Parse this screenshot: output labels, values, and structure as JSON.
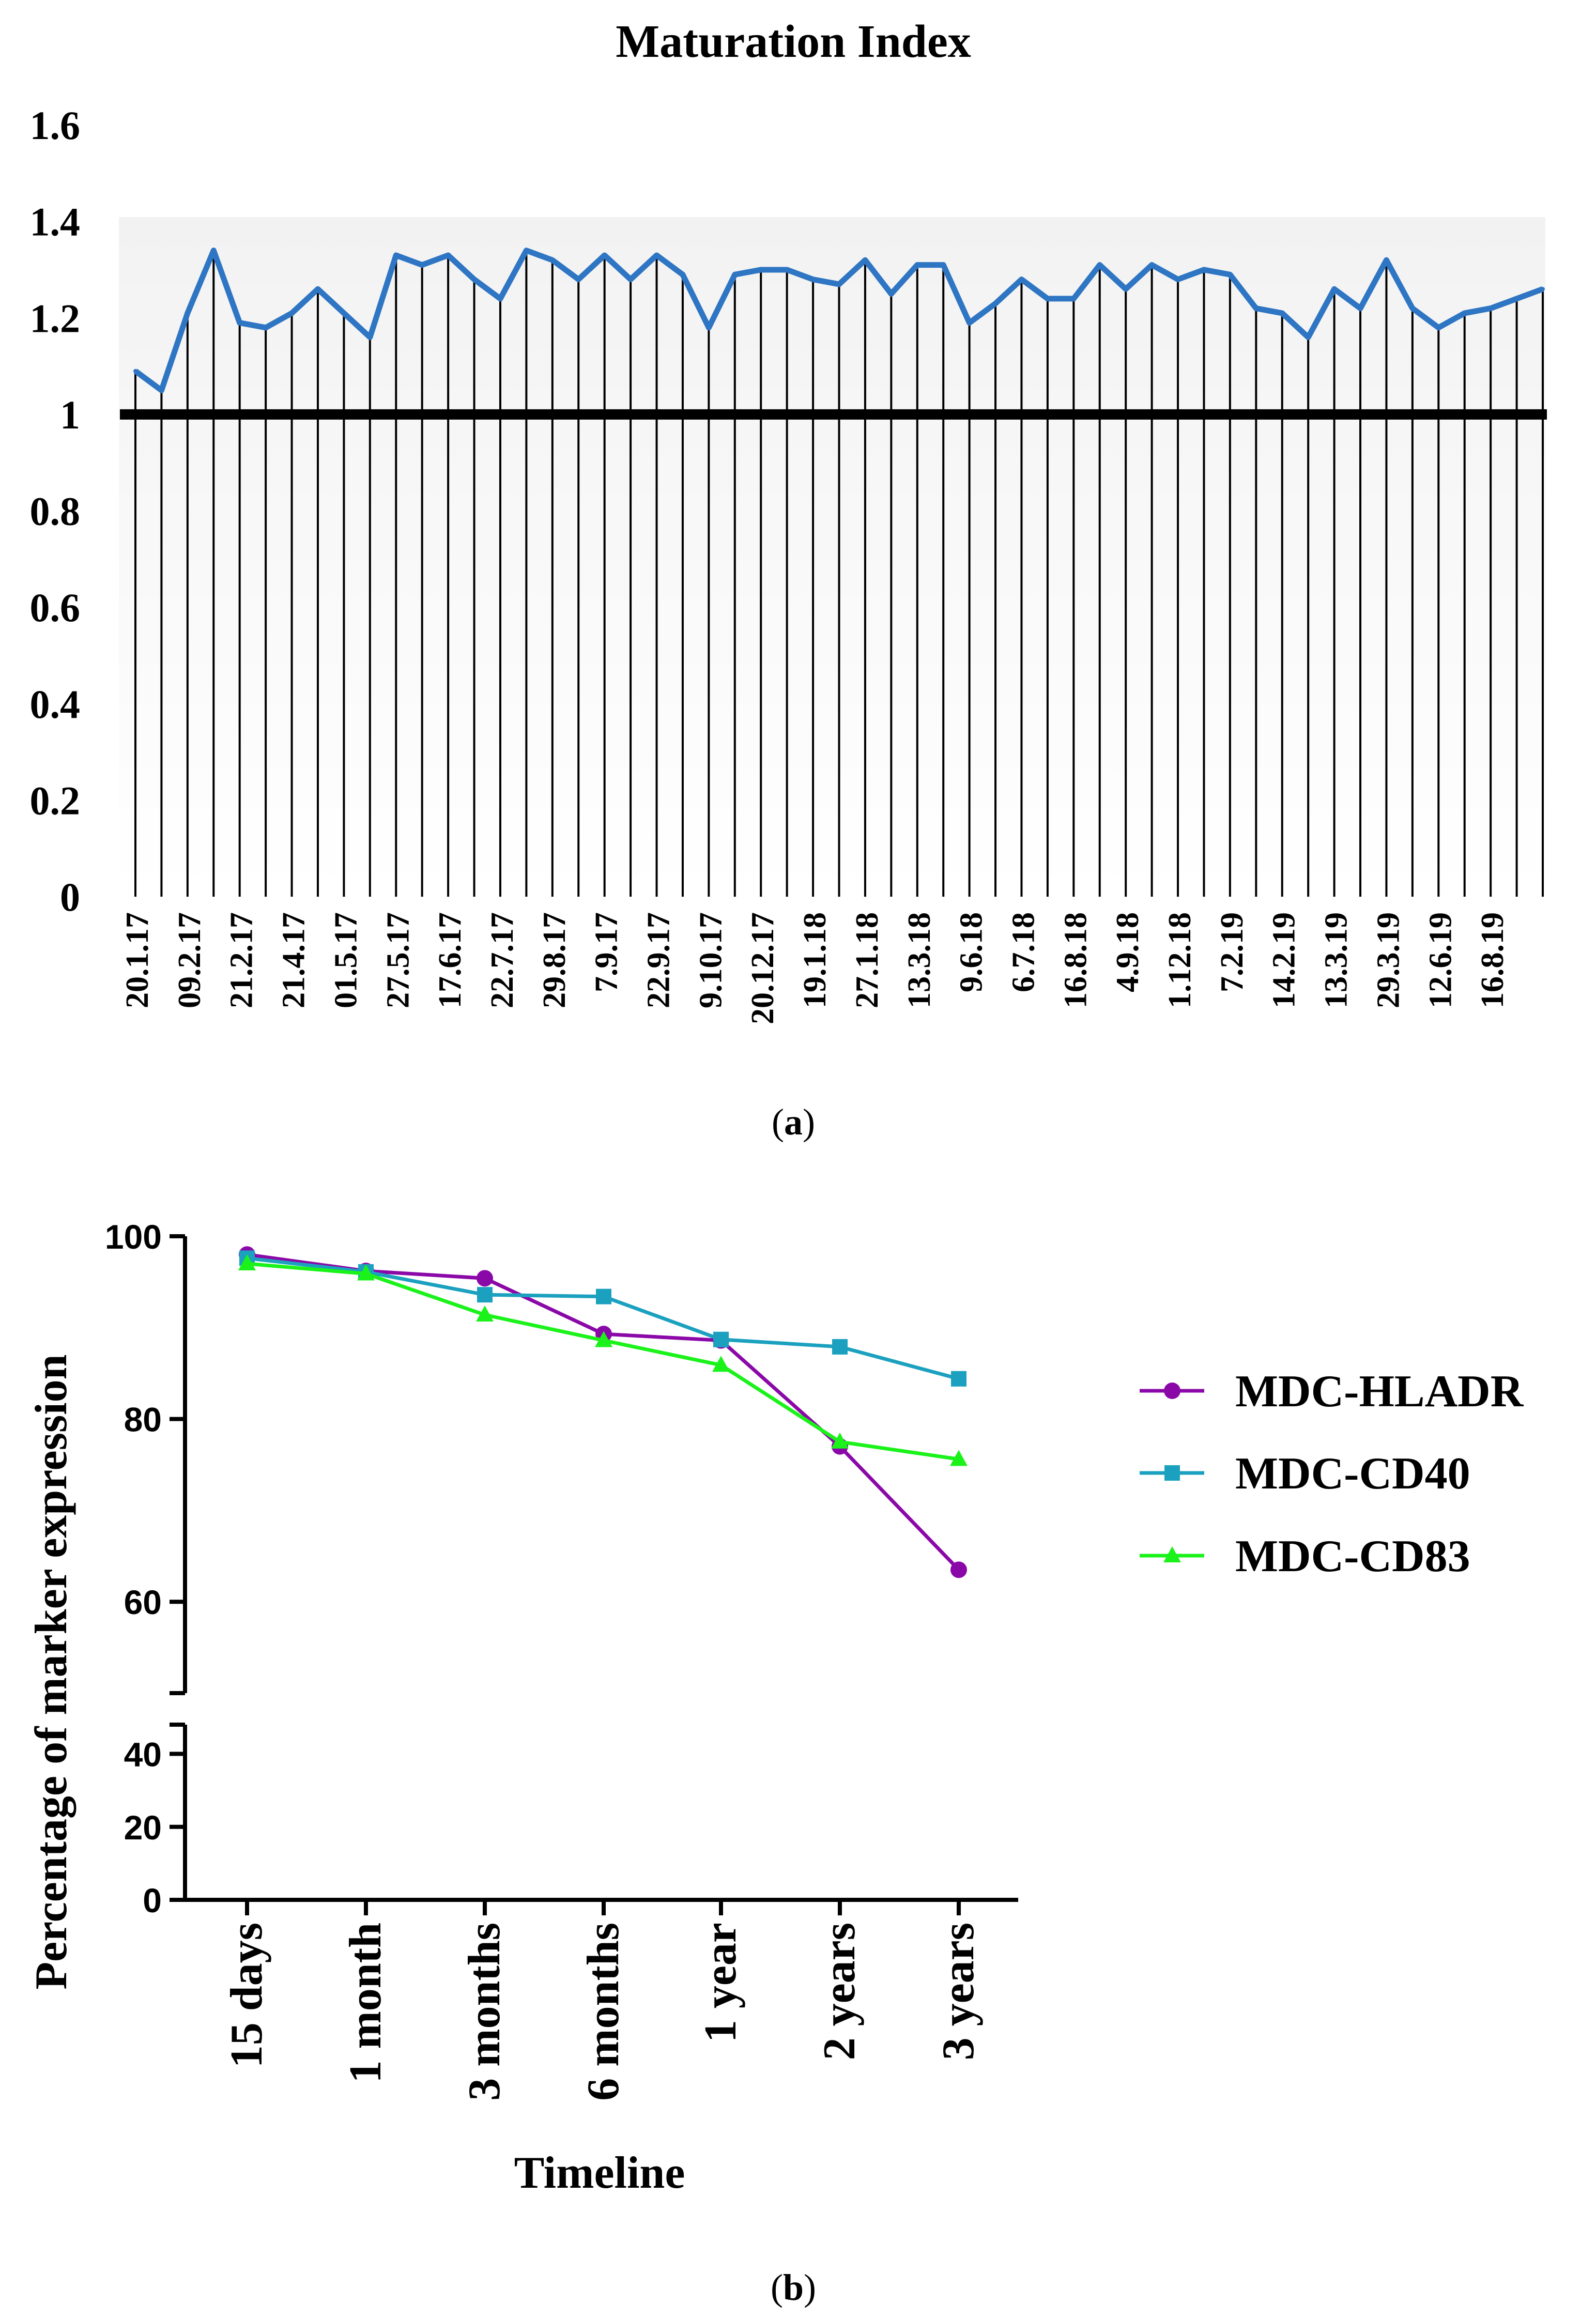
{
  "chart_data": [
    {
      "type": "line",
      "title": "Maturation Index",
      "panel_label": "(a)",
      "panel_letter": "a",
      "xlabel": "",
      "ylabel": "",
      "ylim": [
        0,
        1.6
      ],
      "y_ticks": [
        0,
        0.2,
        0.4,
        0.6,
        0.8,
        1,
        1.2,
        1.4,
        1.6
      ],
      "y_tick_labels": [
        "0",
        "0.2",
        "0.4",
        "0.6",
        "0.8",
        "1",
        "1.2",
        "1.4",
        "1.6"
      ],
      "reference_line": 1,
      "x_tick_labels": [
        "20.1.17",
        "09.2.17",
        "21.2.17",
        "21.4.17",
        "01.5.17",
        "27.5.17",
        "17.6.17",
        "22.7.17",
        "29.8.17",
        "7.9.17",
        "22.9.17",
        "9.10.17",
        "20.12.17",
        "19.1.18",
        "27.1.18",
        "13.3.18",
        "9.6.18",
        "6.7.18",
        "16.8.18",
        "4.9.18",
        "1.12.18",
        "7.2.19",
        "14.2.19",
        "13.3.19",
        "29.3.19",
        "12.6.19",
        "16.8.19"
      ],
      "values": [
        1.09,
        1.05,
        1.21,
        1.34,
        1.19,
        1.18,
        1.21,
        1.26,
        1.21,
        1.16,
        1.33,
        1.31,
        1.33,
        1.28,
        1.24,
        1.34,
        1.32,
        1.28,
        1.33,
        1.28,
        1.33,
        1.29,
        1.18,
        1.29,
        1.3,
        1.3,
        1.28,
        1.27,
        1.32,
        1.25,
        1.31,
        1.31,
        1.19,
        1.23,
        1.28,
        1.24,
        1.24,
        1.31,
        1.26,
        1.31,
        1.28,
        1.3,
        1.29,
        1.22,
        1.21,
        1.16,
        1.26,
        1.22,
        1.32,
        1.22,
        1.18,
        1.21,
        1.22,
        1.24,
        1.26
      ],
      "line_color": "#2E75C3"
    },
    {
      "type": "line",
      "panel_label": "(b)",
      "panel_letter": "b",
      "xlabel": "Timeline",
      "ylabel": "Percentage of marker expression",
      "categories": [
        "15 days",
        "1 month",
        "3 months",
        "6 months",
        "1 year",
        "2 years",
        "3 years"
      ],
      "y_axis_segments": [
        {
          "range": [
            0,
            48
          ],
          "ticks": [
            0,
            20,
            40
          ],
          "tick_labels": [
            "0",
            "20",
            "40"
          ]
        },
        {
          "range": [
            50,
            100
          ],
          "ticks": [
            60,
            80,
            100
          ],
          "tick_labels": [
            "60",
            "80",
            "100"
          ]
        }
      ],
      "series": [
        {
          "name": "MDC-HLADR",
          "values": [
            98,
            96.2,
            95.4,
            89.3,
            88.6,
            77,
            63.5
          ],
          "color": "#8B08A8",
          "marker": "circle"
        },
        {
          "name": "MDC-CD40",
          "values": [
            97.6,
            96.1,
            93.6,
            93.4,
            88.7,
            87.9,
            84.4
          ],
          "color": "#1BA1BF",
          "marker": "square"
        },
        {
          "name": "MDC-CD83",
          "values": [
            97,
            95.9,
            91.4,
            88.6,
            85.9,
            77.5,
            75.6
          ],
          "color": "#1AF21A",
          "marker": "triangle"
        }
      ],
      "legend_position": "right"
    }
  ]
}
